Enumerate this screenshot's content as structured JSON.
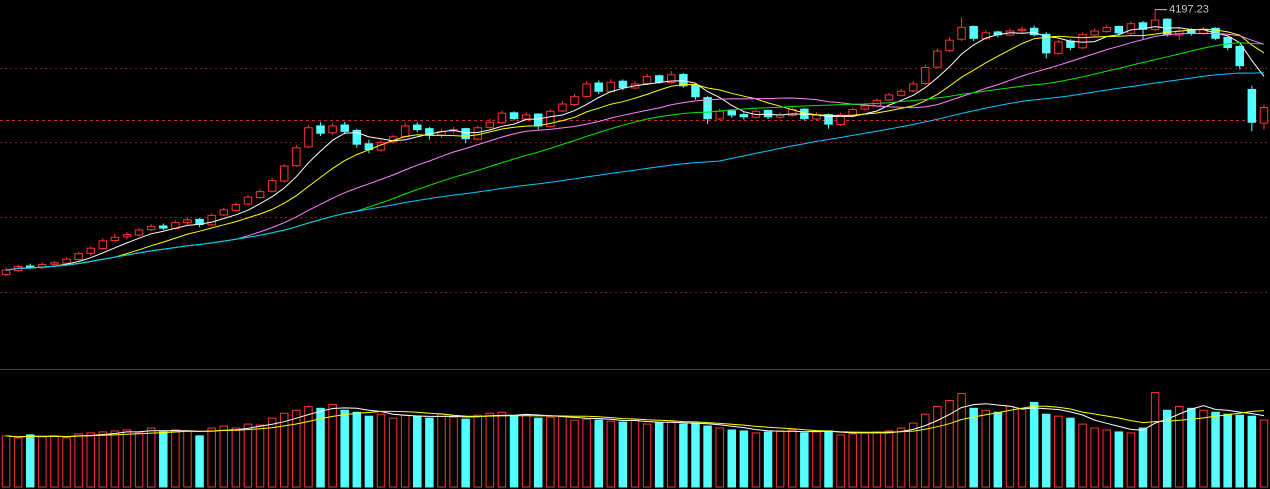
{
  "chart_data": {
    "type": "candlestick",
    "ylim": [
      2250,
      4250
    ],
    "yticks": [
      2650,
      3060,
      3470,
      3880
    ],
    "ref_line": 3590,
    "grid": true,
    "up_color": "#ff3232",
    "down_color": "#54ffff",
    "ma_periods": [
      5,
      10,
      20,
      30,
      60
    ],
    "ma_colors": [
      "#ffffff",
      "#ffff00",
      "#ff80ff",
      "#00e600",
      "#00c8ff"
    ],
    "ohlc": [
      [
        2745,
        2785,
        2735,
        2770
      ],
      [
        2768,
        2800,
        2760,
        2790
      ],
      [
        2792,
        2805,
        2775,
        2785
      ],
      [
        2783,
        2812,
        2778,
        2800
      ],
      [
        2802,
        2820,
        2795,
        2810
      ],
      [
        2808,
        2840,
        2800,
        2830
      ],
      [
        2828,
        2872,
        2822,
        2860
      ],
      [
        2862,
        2900,
        2850,
        2890
      ],
      [
        2888,
        2945,
        2880,
        2930
      ],
      [
        2932,
        2968,
        2920,
        2950
      ],
      [
        2952,
        2980,
        2940,
        2965
      ],
      [
        2962,
        3002,
        2955,
        2990
      ],
      [
        2992,
        3022,
        2985,
        3010
      ],
      [
        3012,
        3025,
        2990,
        3000
      ],
      [
        2998,
        3042,
        2992,
        3030
      ],
      [
        3030,
        3058,
        3020,
        3045
      ],
      [
        3048,
        3055,
        3005,
        3020
      ],
      [
        3018,
        3082,
        3012,
        3070
      ],
      [
        3072,
        3112,
        3065,
        3100
      ],
      [
        3098,
        3142,
        3090,
        3130
      ],
      [
        3132,
        3182,
        3125,
        3170
      ],
      [
        3168,
        3215,
        3160,
        3200
      ],
      [
        3202,
        3275,
        3195,
        3260
      ],
      [
        3258,
        3352,
        3250,
        3340
      ],
      [
        3342,
        3455,
        3335,
        3440
      ],
      [
        3445,
        3565,
        3438,
        3550
      ],
      [
        3560,
        3580,
        3505,
        3520
      ],
      [
        3522,
        3575,
        3510,
        3560
      ],
      [
        3565,
        3582,
        3515,
        3530
      ],
      [
        3535,
        3545,
        3440,
        3460
      ],
      [
        3462,
        3485,
        3410,
        3430
      ],
      [
        3428,
        3482,
        3420,
        3470
      ],
      [
        3472,
        3512,
        3460,
        3500
      ],
      [
        3502,
        3578,
        3495,
        3560
      ],
      [
        3565,
        3580,
        3525,
        3540
      ],
      [
        3545,
        3555,
        3485,
        3510
      ],
      [
        3508,
        3545,
        3495,
        3530
      ],
      [
        3532,
        3555,
        3520,
        3540
      ],
      [
        3545,
        3550,
        3465,
        3490
      ],
      [
        3488,
        3562,
        3480,
        3550
      ],
      [
        3552,
        3598,
        3545,
        3580
      ],
      [
        3578,
        3645,
        3570,
        3630
      ],
      [
        3632,
        3640,
        3590,
        3600
      ],
      [
        3598,
        3635,
        3588,
        3620
      ],
      [
        3625,
        3630,
        3540,
        3560
      ],
      [
        3558,
        3652,
        3550,
        3640
      ],
      [
        3642,
        3695,
        3635,
        3680
      ],
      [
        3678,
        3735,
        3670,
        3720
      ],
      [
        3722,
        3805,
        3715,
        3790
      ],
      [
        3795,
        3810,
        3735,
        3750
      ],
      [
        3748,
        3815,
        3740,
        3800
      ],
      [
        3805,
        3815,
        3755,
        3770
      ],
      [
        3768,
        3805,
        3760,
        3790
      ],
      [
        3792,
        3845,
        3785,
        3830
      ],
      [
        3835,
        3842,
        3790,
        3800
      ],
      [
        3798,
        3860,
        3790,
        3840
      ],
      [
        3842,
        3850,
        3770,
        3780
      ],
      [
        3782,
        3790,
        3705,
        3720
      ],
      [
        3715,
        3725,
        3570,
        3600
      ],
      [
        3598,
        3655,
        3590,
        3640
      ],
      [
        3642,
        3650,
        3605,
        3620
      ],
      [
        3622,
        3635,
        3595,
        3610
      ],
      [
        3608,
        3655,
        3600,
        3640
      ],
      [
        3645,
        3650,
        3598,
        3610
      ],
      [
        3608,
        3635,
        3600,
        3620
      ],
      [
        3618,
        3665,
        3610,
        3650
      ],
      [
        3652,
        3658,
        3590,
        3600
      ],
      [
        3598,
        3635,
        3590,
        3620
      ],
      [
        3622,
        3628,
        3545,
        3570
      ],
      [
        3568,
        3632,
        3560,
        3620
      ],
      [
        3618,
        3662,
        3610,
        3650
      ],
      [
        3652,
        3685,
        3645,
        3670
      ],
      [
        3668,
        3712,
        3660,
        3700
      ],
      [
        3702,
        3742,
        3695,
        3730
      ],
      [
        3728,
        3762,
        3720,
        3750
      ],
      [
        3752,
        3805,
        3745,
        3790
      ],
      [
        3792,
        3895,
        3785,
        3880
      ],
      [
        3882,
        3985,
        3875,
        3970
      ],
      [
        3972,
        4045,
        3965,
        4030
      ],
      [
        4035,
        4155,
        4025,
        4100
      ],
      [
        4105,
        4110,
        4025,
        4040
      ],
      [
        4038,
        4085,
        4030,
        4070
      ],
      [
        4075,
        4082,
        4045,
        4060
      ],
      [
        4058,
        4095,
        4050,
        4080
      ],
      [
        4082,
        4105,
        4070,
        4090
      ],
      [
        4095,
        4110,
        4050,
        4060
      ],
      [
        4062,
        4075,
        3930,
        3960
      ],
      [
        3958,
        4032,
        3950,
        4020
      ],
      [
        4025,
        4035,
        3975,
        3990
      ],
      [
        3988,
        4072,
        3980,
        4060
      ],
      [
        4058,
        4095,
        4050,
        4080
      ],
      [
        4078,
        4112,
        4070,
        4100
      ],
      [
        4105,
        4110,
        4055,
        4070
      ],
      [
        4068,
        4132,
        4060,
        4120
      ],
      [
        4125,
        4135,
        4035,
        4090
      ],
      [
        4088,
        4197.23,
        4080,
        4140
      ],
      [
        4145,
        4150,
        4050,
        4060
      ],
      [
        4058,
        4095,
        4030,
        4080
      ],
      [
        4085,
        4095,
        4055,
        4070
      ],
      [
        4068,
        4102,
        4060,
        4090
      ],
      [
        4095,
        4100,
        4030,
        4040
      ],
      [
        4045,
        4050,
        3975,
        3990
      ],
      [
        3995,
        4005,
        3870,
        3890
      ],
      [
        3760,
        3780,
        3530,
        3580
      ],
      [
        3575,
        3675,
        3540,
        3660
      ]
    ],
    "volume": [
      52,
      50,
      53,
      51,
      52,
      50,
      54,
      55,
      56,
      57,
      58,
      55,
      60,
      56,
      58,
      57,
      52,
      60,
      62,
      60,
      64,
      63,
      70,
      75,
      78,
      82,
      80,
      84,
      78,
      76,
      72,
      74,
      70,
      73,
      72,
      70,
      74,
      71,
      69,
      73,
      75,
      76,
      72,
      73,
      70,
      71,
      72,
      68,
      69,
      68,
      67,
      66,
      68,
      64,
      65,
      66,
      64,
      65,
      62,
      60,
      58,
      57,
      55,
      56,
      57,
      58,
      55,
      56,
      57,
      53,
      54,
      55,
      56,
      57,
      60,
      65,
      74,
      82,
      88,
      95,
      80,
      78,
      76,
      82,
      80,
      86,
      74,
      72,
      70,
      64,
      60,
      58,
      56,
      55,
      60,
      96,
      78,
      82,
      80,
      78,
      76,
      74,
      73,
      72,
      68
    ],
    "vlim": [
      0,
      120
    ],
    "volume_ma_periods": [
      5,
      10
    ],
    "volume_ma_colors": [
      "#ffffff",
      "#ffff00"
    ]
  }
}
